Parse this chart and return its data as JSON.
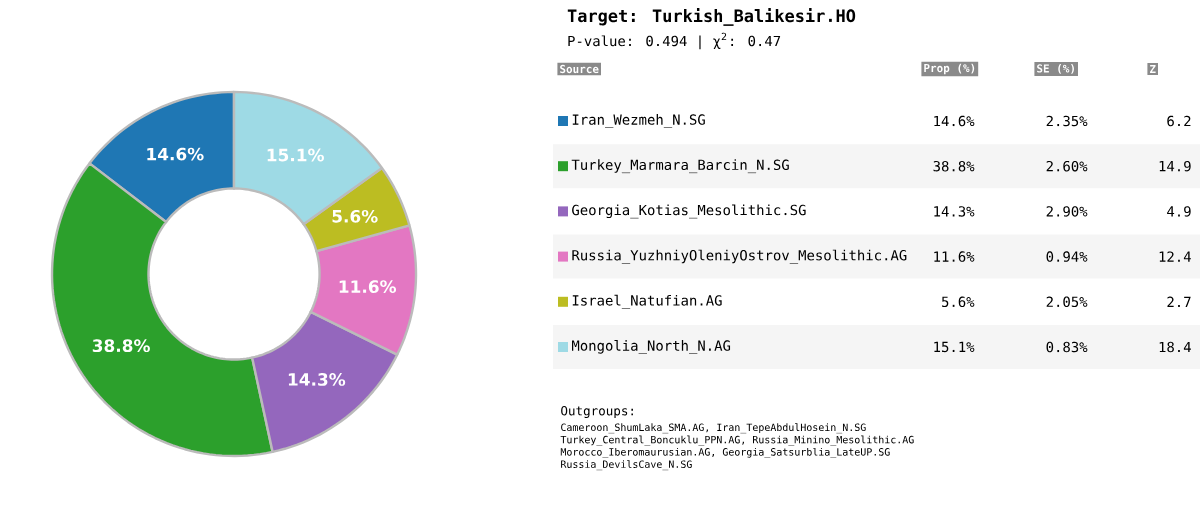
{
  "chart_data": {
    "type": "donut",
    "title": "Target: Turkish_Balikesir.HO",
    "subtitle": "P-value: 0.494   |   χ$^{2}$: 0.47",
    "categories": [
      "Iran_Wezmeh_N.SG",
      "Turkey_Marmara_Barcin_N.SG",
      "Georgia_Kotias_Mesolithic.SG",
      "Russia_YuzhniyOleniyOstrov_Mesolithic.AG",
      "Israel_Natufian.AG",
      "Mongolia_North_N.AG"
    ],
    "values": [
      14.6,
      38.8,
      14.3,
      11.6,
      5.6,
      15.1
    ],
    "colors": [
      "#1f77b4",
      "#2ca02c",
      "#9467bd",
      "#e377c2",
      "#bcbd22",
      "#9edae5"
    ],
    "value_labels": [
      "14.6%",
      "38.8%",
      "14.3%",
      "11.6%",
      "5.6%",
      "15.1%"
    ],
    "legend": "right",
    "annotations": [
      "Source",
      "Prop (%)",
      "SE (%)",
      "Z",
      "2.35%",
      "2.60%",
      "2.90%",
      "0.94%",
      "2.05%",
      "0.83%",
      "6.2",
      "14.9",
      "4.9",
      "12.4",
      "2.7",
      "18.4",
      "Outgroups:",
      "Cameroon_ShumLaka_SMA.AG, Iran_TepeAbdulHosein_N.SG",
      "Turkey_Central_Boncuklu_PPN.AG, Russia_Minino_Mesolithic.AG",
      "Morocco_Iberomaurusian.AG, Georgia_Satsurblia_LateUP.SG",
      "Russia_DevilsCave_N.SG"
    ]
  }
}
